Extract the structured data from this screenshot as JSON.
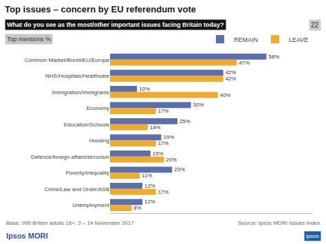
{
  "chart_data": {
    "type": "bar",
    "orientation": "horizontal",
    "title": "Top issues – concern by EU referendum vote",
    "subtitle": "Top mentions %",
    "annotations": [
      "What do you see as the most/other important issues facing Britain today?",
      "22",
      "Base: 999 British adults 16+, 3 – 14 November 2017",
      "Source: Ipsos MORI Issues Index",
      "Ipsos MORI",
      "ipsos"
    ],
    "categories": [
      "Common Market/Brexit/EU/Europe",
      "NHS/Hospitals/Healthcare",
      "Immigration/Immigrants",
      "Economy",
      "Education/Schools",
      "Housing",
      "Defence/foreign affairs/terrorism",
      "Poverty/Inequality",
      "Crime/Law and Order/ASB",
      "Unemployment"
    ],
    "series": [
      {
        "name": "REMAIN",
        "color": "#5b6fad",
        "values": [
          58,
          42,
          10,
          30,
          25,
          19,
          15,
          23,
          12,
          12
        ],
        "value_labels": [
          "58%",
          "42%",
          "10%",
          "30%",
          "25%",
          "19%",
          "15%",
          "23%",
          "12%",
          "12%"
        ]
      },
      {
        "name": "LEAVE",
        "color": "#f0aa2c",
        "values": [
          47,
          42,
          40,
          17,
          14,
          17,
          20,
          11,
          17,
          8
        ],
        "value_labels": [
          "47%",
          "42%",
          "40%",
          "17%",
          "14%",
          "17%",
          "20%",
          "11%",
          "17%",
          "8%"
        ]
      }
    ],
    "xlim": [
      0,
      75
    ],
    "grid": false,
    "legend": "upper right",
    "data_labels": true,
    "tick_labels": "y"
  }
}
